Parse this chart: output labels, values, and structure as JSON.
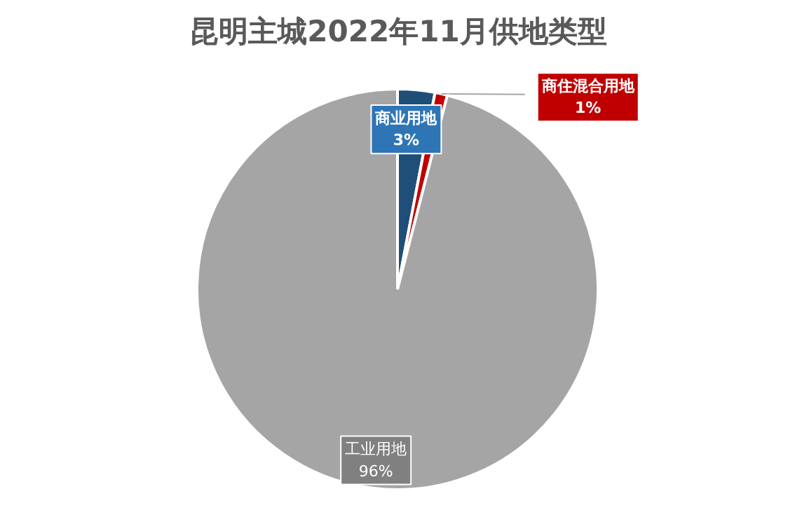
{
  "chart_data": {
    "type": "pie",
    "title": "昆明主城2022年11月供地类型",
    "categories": [
      "商业用地",
      "商住混合用地",
      "工业用地"
    ],
    "values": [
      3,
      1,
      96
    ],
    "colors": [
      "#1f4e79",
      "#c00000",
      "#a5a5a5"
    ],
    "value_labels": [
      "3%",
      "1%",
      "96%"
    ]
  }
}
